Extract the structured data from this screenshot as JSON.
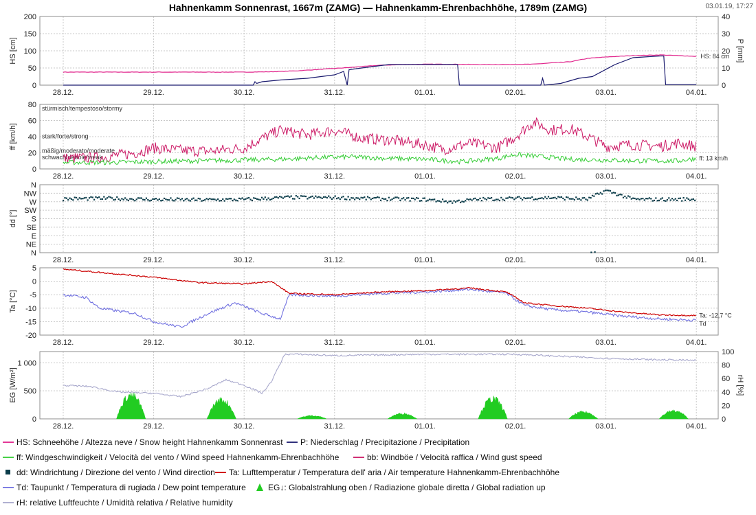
{
  "title": "Hahnenkamm Sonnenrast, 1667m (ZAMG) — Hahnenkamm-Ehrenbachhöhe, 1789m (ZAMG)",
  "timestamp": "03.01.19, 17:27",
  "colors": {
    "hs": "#e0218a",
    "p": "#1a1a6e",
    "ff": "#33cc33",
    "bb": "#cc1a66",
    "dd": "#0b3d4a",
    "ta": "#cc0000",
    "td": "#7070e0",
    "eg": "#22cc22",
    "rh": "#a8a8cc"
  },
  "chart_data": [
    {
      "type": "line",
      "x_tick_labels": [
        "28.12.",
        "29.12.",
        "30.12.",
        "31.12.",
        "01.01.",
        "02.01.",
        "03.01.",
        "04.01."
      ],
      "ylabel_left": "HS [cm]",
      "ylabel_right": "P [mm]",
      "ylim_left": [
        0,
        200
      ],
      "ylim_right": [
        0,
        40
      ],
      "yticks_left": [
        "200",
        "150",
        "100",
        "50",
        "0"
      ],
      "yticks_right": [
        "40",
        "30",
        "20",
        "10",
        "0"
      ],
      "annotations": [
        "HS: 84 cm"
      ],
      "series": [
        {
          "name": "HS",
          "axis": "left",
          "x": [
            0,
            0.5,
            1,
            1.5,
            2,
            2.3,
            2.6,
            2.9,
            3.2,
            3.5,
            3.8,
            4,
            4.3,
            4.6,
            4.9,
            5.2,
            5.4,
            5.6,
            5.8,
            6,
            6.3,
            6.6,
            6.8,
            7
          ],
          "y": [
            38,
            38,
            38,
            38,
            38,
            39,
            42,
            47,
            52,
            58,
            60,
            61,
            61,
            60,
            60,
            61,
            65,
            68,
            78,
            82,
            86,
            88,
            86,
            84
          ]
        },
        {
          "name": "P",
          "axis": "right",
          "x": [
            0,
            2.1,
            2.12,
            2.14,
            2.2,
            2.4,
            2.7,
            3,
            3.1,
            3.14,
            3.16,
            3.3,
            3.6,
            3.9,
            4.3,
            4.36,
            4.38,
            5.0,
            5.28,
            5.3,
            5.32,
            5.5,
            5.7,
            5.85,
            6.1,
            6.3,
            6.6,
            6.64,
            6.66,
            7
          ],
          "y": [
            0,
            0,
            2,
            1,
            2,
            3,
            4,
            6,
            8,
            0,
            9,
            10,
            12,
            12,
            12,
            12,
            0,
            0,
            0,
            4,
            0,
            1,
            4,
            5,
            12,
            16,
            17,
            17,
            0.3,
            0.3
          ]
        }
      ]
    },
    {
      "type": "line",
      "x_tick_labels": [
        "28.12.",
        "29.12.",
        "30.12.",
        "31.12.",
        "01.01.",
        "02.01.",
        "03.01.",
        "04.01."
      ],
      "ylabel": "ff [km/h]",
      "ylim": [
        0,
        80
      ],
      "yticks": [
        "80",
        "60",
        "40",
        "20",
        "0"
      ],
      "bands": [
        "stürmisch/tempestoso/stormy",
        "stark/forte/strong",
        "mäßig/moderato/moderate",
        "schwach/debole/weak"
      ],
      "annotations": [
        "ff: 13 km/h"
      ],
      "series": [
        {
          "name": "bb",
          "x": [
            0,
            0.4,
            0.8,
            1.0,
            1.3,
            1.6,
            2.0,
            2.2,
            2.4,
            2.7,
            3.0,
            3.3,
            3.6,
            4.0,
            4.2,
            4.5,
            4.8,
            5.0,
            5.2,
            5.4,
            5.6,
            5.8,
            6.0,
            6.3,
            6.6,
            6.8,
            7
          ],
          "y": [
            13,
            14,
            20,
            26,
            23,
            22,
            26,
            38,
            48,
            42,
            48,
            38,
            36,
            30,
            24,
            32,
            26,
            40,
            58,
            48,
            50,
            40,
            28,
            30,
            28,
            32,
            28
          ]
        },
        {
          "name": "ff",
          "x": [
            0,
            0.5,
            1.0,
            1.5,
            2.0,
            2.4,
            2.8,
            3.2,
            3.6,
            4.0,
            4.4,
            4.8,
            5.0,
            5.3,
            5.6,
            6.0,
            6.4,
            6.8,
            7
          ],
          "y": [
            8,
            8,
            9,
            10,
            11,
            12,
            14,
            15,
            13,
            12,
            9,
            13,
            18,
            15,
            12,
            11,
            10,
            10,
            13
          ]
        }
      ]
    },
    {
      "type": "scatter",
      "x_tick_labels": [
        "28.12.",
        "29.12.",
        "30.12.",
        "31.12.",
        "01.01.",
        "02.01.",
        "03.01.",
        "04.01."
      ],
      "ylabel": "dd [°]",
      "ylim": [
        0,
        360
      ],
      "yticks": [
        "N",
        "NW",
        "W",
        "SW",
        "S",
        "SE",
        "E",
        "NE",
        "N"
      ],
      "series": [
        {
          "name": "dd",
          "x": [
            0,
            0.5,
            1.0,
            1.5,
            2.0,
            2.5,
            3.0,
            3.5,
            4.0,
            4.3,
            4.6,
            5.0,
            5.4,
            5.8,
            6.0,
            6.3,
            6.6,
            7
          ],
          "y": [
            285,
            288,
            282,
            280,
            282,
            293,
            292,
            286,
            282,
            270,
            283,
            288,
            292,
            283,
            330,
            283,
            282,
            284
          ]
        }
      ]
    },
    {
      "type": "line",
      "x_tick_labels": [
        "28.12.",
        "29.12.",
        "30.12.",
        "31.12.",
        "01.01.",
        "02.01.",
        "03.01.",
        "04.01."
      ],
      "ylabel": "Ta [°C]",
      "ylim": [
        -20,
        5
      ],
      "yticks": [
        "5",
        "0",
        "-5",
        "-10",
        "-15",
        "-20"
      ],
      "annotations": [
        "Ta: -12,7 °C",
        "Td"
      ],
      "series": [
        {
          "name": "Ta",
          "x": [
            0,
            0.5,
            1.0,
            1.5,
            2.0,
            2.3,
            2.5,
            3.0,
            3.5,
            4.0,
            4.5,
            4.9,
            5.1,
            5.4,
            5.8,
            6.2,
            6.6,
            7
          ],
          "y": [
            4.5,
            3,
            1.5,
            -0.5,
            -1,
            0,
            -4.5,
            -5,
            -4,
            -3.5,
            -2.5,
            -4,
            -8,
            -9,
            -10,
            -11.5,
            -12.5,
            -12.7
          ]
        },
        {
          "name": "Td",
          "x": [
            0,
            0.25,
            0.4,
            0.8,
            1.0,
            1.3,
            1.6,
            1.9,
            2.2,
            2.4,
            2.5,
            3.0,
            3.5,
            4.0,
            4.5,
            4.9,
            5.1,
            5.4,
            5.8,
            6.2,
            6.6,
            7
          ],
          "y": [
            -5,
            -6,
            -10,
            -12,
            -15,
            -17,
            -12,
            -8,
            -12,
            -14,
            -5,
            -5.5,
            -4.5,
            -4,
            -3,
            -4.5,
            -9,
            -10.5,
            -11.5,
            -13,
            -14,
            -14.5
          ]
        }
      ]
    },
    {
      "type": "area",
      "x_tick_labels": [
        "28.12.",
        "29.12.",
        "30.12.",
        "31.12.",
        "01.01.",
        "02.01.",
        "03.01.",
        "04.01."
      ],
      "ylabel_left": "EG [W/m²]",
      "ylabel_right": "rH [%]",
      "ylim_left": [
        0,
        1200
      ],
      "ylim_right": [
        0,
        100
      ],
      "yticks_left": [
        "1 000",
        "500",
        "0"
      ],
      "yticks_right": [
        "100",
        "80",
        "60",
        "40",
        "20",
        "0"
      ],
      "series": [
        {
          "name": "EG",
          "axis": "left",
          "peaks": [
            {
              "center": 0.75,
              "width": 0.32,
              "peak": 450
            },
            {
              "center": 1.75,
              "width": 0.32,
              "peak": 360
            },
            {
              "center": 2.75,
              "width": 0.32,
              "peak": 60
            },
            {
              "center": 3.75,
              "width": 0.32,
              "peak": 100
            },
            {
              "center": 4.75,
              "width": 0.32,
              "peak": 380
            },
            {
              "center": 5.75,
              "width": 0.32,
              "peak": 130
            },
            {
              "center": 6.75,
              "width": 0.32,
              "peak": 150
            }
          ]
        },
        {
          "name": "rH",
          "axis": "right",
          "x": [
            0,
            0.3,
            0.6,
            1.0,
            1.3,
            1.6,
            1.8,
            2.0,
            2.2,
            2.3,
            2.45,
            2.6,
            3.0,
            4.0,
            5.0,
            6.0,
            6.5,
            7
          ],
          "y": [
            50,
            48,
            40,
            38,
            33,
            45,
            58,
            50,
            38,
            55,
            96,
            96,
            94,
            96,
            96,
            90,
            88,
            87
          ]
        }
      ]
    }
  ],
  "legend": [
    {
      "key": "hs",
      "style": "line",
      "label": "HS: Schneehöhe / Altezza neve / Snow height  Hahnenkamm Sonnenrast"
    },
    {
      "key": "p",
      "style": "line",
      "label": "P: Niederschlag / Precipitazione / Precipitation"
    },
    {
      "key": "ff",
      "style": "line",
      "label": "ff: Windgeschwindigkeit / Velocità del vento / Wind speed  Hahnenkamm-Ehrenbachhöhe"
    },
    {
      "key": "bb",
      "style": "line",
      "label": "bb: Windböe / Velocità raffica / Wind gust speed"
    },
    {
      "key": "dd",
      "style": "square",
      "label": "dd: Windrichtung / Direzione del vento / Wind direction"
    },
    {
      "key": "ta",
      "style": "line",
      "label": "Ta: Lufttemperatur / Temperatura dell' aria / Air temperature  Hahnenkamm-Ehrenbachhöhe"
    },
    {
      "key": "td",
      "style": "line",
      "label": "Td: Taupunkt / Temperatura di rugiada / Dew point temperature"
    },
    {
      "key": "eg",
      "style": "mountain",
      "label": "EG↓: Globalstrahlung oben / Radiazione globale diretta / Global radiation up"
    },
    {
      "key": "rh",
      "style": "line",
      "label": "rH: relative Luftfeuchte / Umidità relativa / Relative humidity"
    }
  ]
}
